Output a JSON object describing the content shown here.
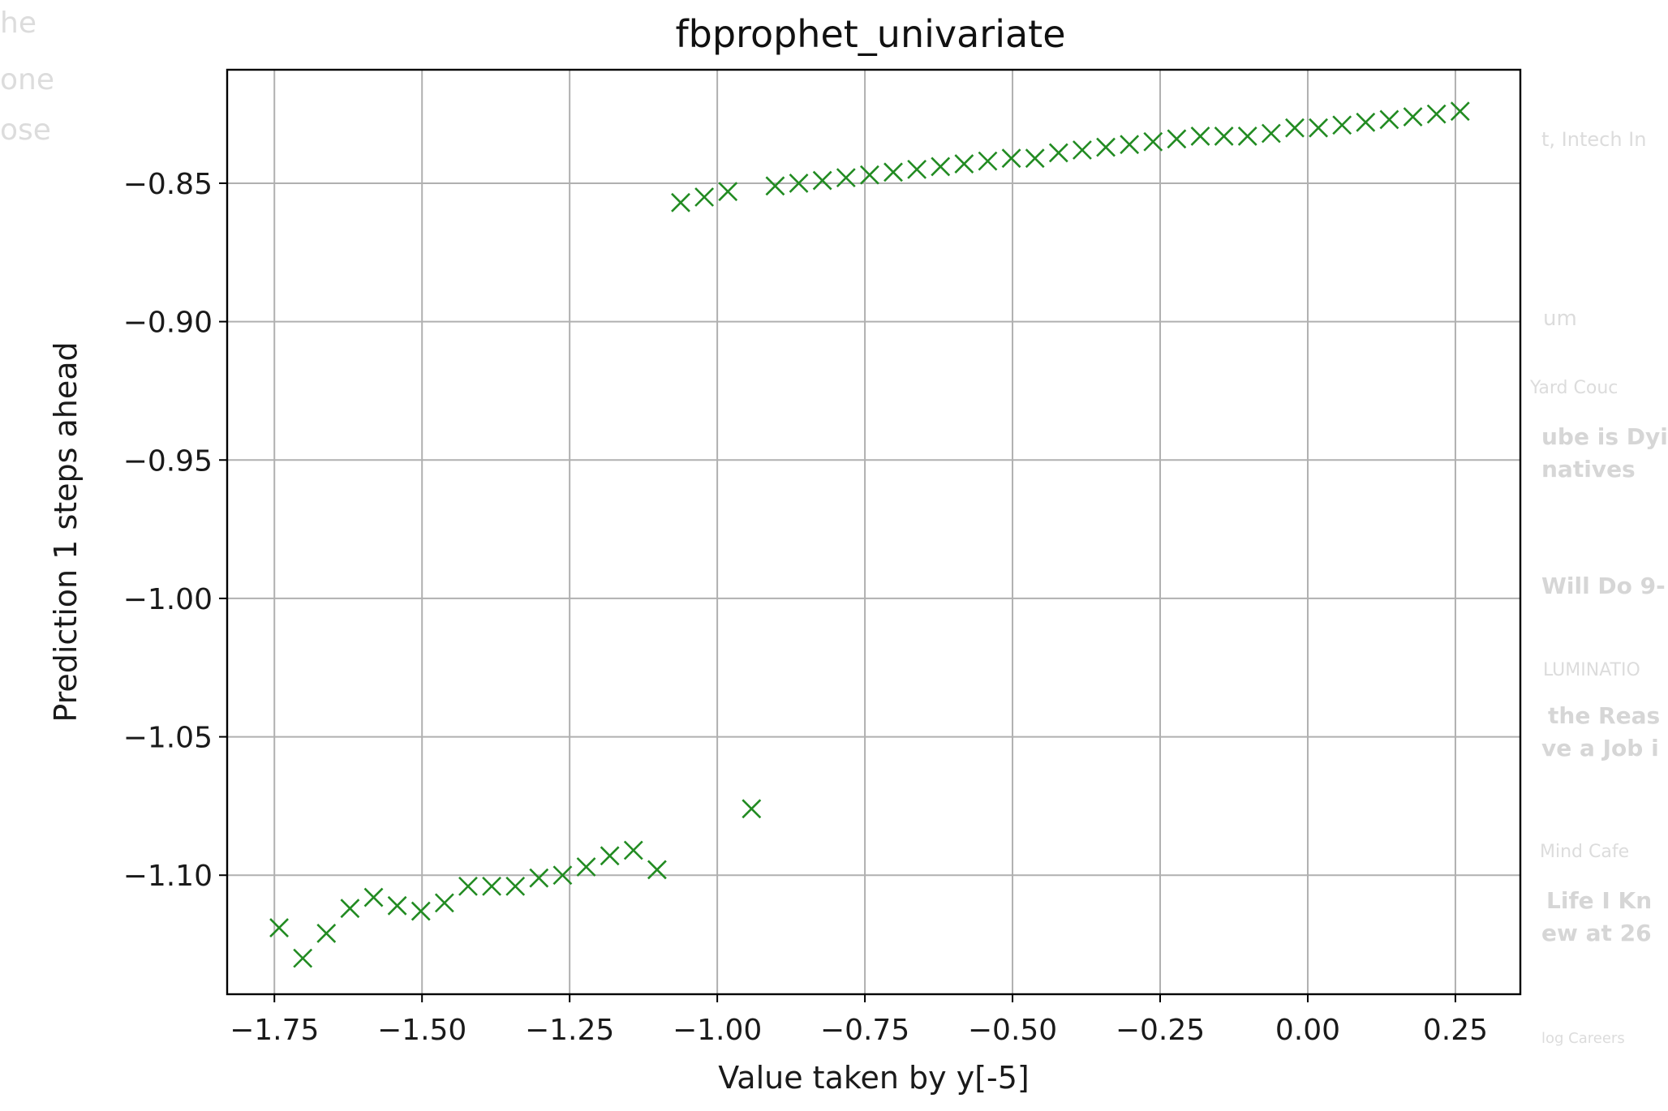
{
  "background_fragments": [
    {
      "text": "he"
    },
    {
      "text": "one"
    },
    {
      "text": "ose"
    },
    {
      "text": "t, Intech In"
    },
    {
      "text": "um"
    },
    {
      "text": "Yard Couc"
    },
    {
      "text": "ube is Dyi"
    },
    {
      "text": "natives"
    },
    {
      "text": "Will Do 9-"
    },
    {
      "text": "LUMINATIO"
    },
    {
      "text": "the Reas"
    },
    {
      "text": "ve a Job i"
    },
    {
      "text": "Mind Cafe"
    },
    {
      "text": "Life I Kn"
    },
    {
      "text": "ew at 26"
    },
    {
      "text": "log  Careers"
    }
  ],
  "chart_data": {
    "type": "scatter",
    "title": "fbprophet_univariate",
    "xlabel": "Value taken by y[-5]",
    "ylabel": "Prediction 1 steps ahead",
    "xlim": [
      -1.83,
      0.36
    ],
    "ylim": [
      -1.143,
      -0.809
    ],
    "xticks": [
      -1.75,
      -1.5,
      -1.25,
      -1.0,
      -0.75,
      -0.5,
      -0.25,
      0.0,
      0.25
    ],
    "xtick_labels": [
      "−1.75",
      "−1.50",
      "−1.25",
      "−1.00",
      "−0.75",
      "−0.50",
      "−0.25",
      "0.00",
      "0.25"
    ],
    "yticks": [
      -0.85,
      -0.9,
      -0.95,
      -1.0,
      -1.05,
      -1.1
    ],
    "ytick_labels": [
      "−0.85",
      "−0.90",
      "−0.95",
      "−1.00",
      "−1.05",
      "−1.10"
    ],
    "grid": true,
    "marker": "x",
    "color": "#228b22",
    "series": [
      {
        "x": [
          -1.742,
          -1.702,
          -1.662,
          -1.622,
          -1.582,
          -1.542,
          -1.502,
          -1.462,
          -1.422,
          -1.382,
          -1.342,
          -1.302,
          -1.262,
          -1.222,
          -1.182,
          -1.142,
          -1.102,
          -0.942,
          -1.062,
          -1.022,
          -0.982,
          -0.902,
          -0.862,
          -0.822,
          -0.782,
          -0.742,
          -0.702,
          -0.662,
          -0.622,
          -0.582,
          -0.542,
          -0.502,
          -0.462,
          -0.422,
          -0.382,
          -0.342,
          -0.302,
          -0.262,
          -0.222,
          -0.182,
          -0.142,
          -0.102,
          -0.062,
          -0.022,
          0.018,
          0.058,
          0.098,
          0.138,
          0.178,
          0.218,
          0.258
        ],
        "y": [
          -1.119,
          -1.13,
          -1.121,
          -1.112,
          -1.108,
          -1.111,
          -1.113,
          -1.11,
          -1.104,
          -1.104,
          -1.104,
          -1.101,
          -1.1,
          -1.097,
          -1.093,
          -1.091,
          -1.098,
          -1.076,
          -0.857,
          -0.855,
          -0.853,
          -0.851,
          -0.85,
          -0.849,
          -0.848,
          -0.847,
          -0.846,
          -0.845,
          -0.844,
          -0.843,
          -0.842,
          -0.841,
          -0.841,
          -0.839,
          -0.838,
          -0.837,
          -0.836,
          -0.835,
          -0.834,
          -0.833,
          -0.833,
          -0.833,
          -0.832,
          -0.83,
          -0.83,
          -0.829,
          -0.828,
          -0.827,
          -0.826,
          -0.825,
          -0.824
        ]
      }
    ]
  }
}
